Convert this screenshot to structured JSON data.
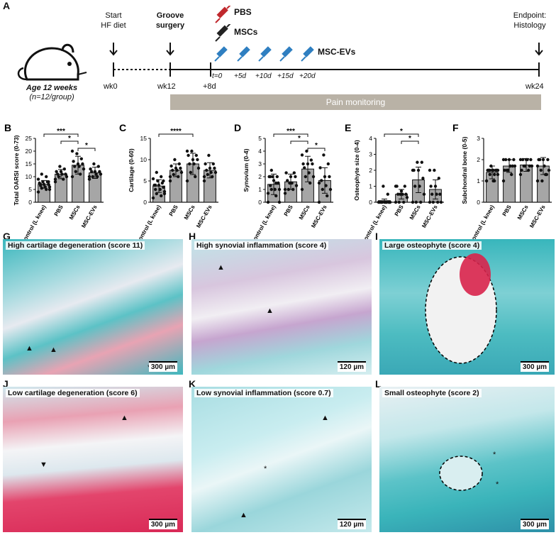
{
  "panel_a": {
    "letter": "A",
    "age_label": "Age 12 weeks",
    "group_label": "(n=12/group)",
    "start_label_1": "Start",
    "start_label_2": "HF diet",
    "surgery_label_1": "Groove",
    "surgery_label_2": "surgery",
    "endpoint_label_1": "Endpoint:",
    "endpoint_label_2": "Histology",
    "week_labels": [
      "wk0",
      "wk12",
      "+8d",
      "wk24"
    ],
    "injections": [
      "PBS",
      "MSCs",
      "MSC-EVs"
    ],
    "ev_doses": [
      "t=0",
      "+5d",
      "+10d",
      "+15d",
      "+20d"
    ],
    "pain_label": "Pain monitoring",
    "colors": {
      "pbs": "#c0282d",
      "mscs": "#222222",
      "evs": "#2f7fc1",
      "pain_bar": "#b9b2a6"
    }
  },
  "charts": [
    {
      "letter": "B",
      "ylabel": "Total OARSI score (0-73)",
      "ylim": [
        0,
        25
      ],
      "yticks": [
        0,
        5,
        10,
        15,
        20,
        25
      ],
      "categories": [
        "Control (L knee)",
        "PBS",
        "MSCs",
        "MSC-EVs"
      ],
      "means": [
        7,
        11,
        14.5,
        11.5
      ],
      "sds": [
        1.5,
        1.8,
        3.5,
        2.2
      ],
      "points": [
        [
          4,
          5,
          5.5,
          6,
          6,
          6.5,
          7,
          7,
          7.5,
          8,
          8,
          9,
          10,
          11,
          5,
          6,
          7,
          8
        ],
        [
          8,
          9,
          10,
          10,
          11,
          11,
          11,
          12,
          12,
          13,
          14,
          9
        ],
        [
          10,
          11,
          12,
          13,
          14,
          14,
          15,
          15,
          16,
          17,
          19,
          20
        ],
        [
          9,
          10,
          10,
          11,
          11,
          12,
          12,
          12,
          13,
          14,
          15,
          10
        ]
      ],
      "brackets": [
        {
          "from": 0,
          "to": 2,
          "label": "***"
        },
        {
          "from": 1,
          "to": 2,
          "label": "*"
        },
        {
          "from": 2,
          "to": 3,
          "label": "*"
        }
      ],
      "type": "bar"
    },
    {
      "letter": "C",
      "ylabel": "Cartilage (0-60)",
      "ylim": [
        0,
        15
      ],
      "yticks": [
        0,
        5,
        10,
        15
      ],
      "categories": [
        "Control (L knee)",
        "PBS",
        "MSCs",
        "MSC-EVs"
      ],
      "means": [
        3.8,
        7.5,
        9,
        7.5
      ],
      "sds": [
        1.5,
        1.5,
        2.5,
        1.8
      ],
      "points": [
        [
          1,
          1.5,
          2,
          2.5,
          3,
          3,
          3.5,
          4,
          4,
          4.5,
          5,
          5.5,
          6,
          7,
          2,
          3,
          4,
          5
        ],
        [
          5,
          6,
          6.5,
          7,
          7.5,
          7.5,
          8,
          8,
          8.5,
          9,
          10,
          6
        ],
        [
          5,
          6,
          7,
          8,
          9,
          9,
          10,
          10,
          11,
          11,
          12,
          12
        ],
        [
          5,
          6,
          6.5,
          7,
          7,
          7.5,
          8,
          8,
          9,
          9,
          11,
          6
        ]
      ],
      "brackets": [
        {
          "from": 0,
          "to": 2,
          "label": "****"
        }
      ],
      "type": "bar"
    },
    {
      "letter": "D",
      "ylabel": "Synovium (0-4)",
      "ylim": [
        0,
        5
      ],
      "yticks": [
        0,
        1,
        2,
        3,
        4,
        5
      ],
      "categories": [
        "Control (L knee)",
        "PBS",
        "MSCs",
        "MSC-EVs"
      ],
      "means": [
        1.4,
        1.6,
        2.6,
        1.7
      ],
      "sds": [
        0.8,
        0.6,
        1,
        1
      ],
      "points": [
        [
          0,
          0.5,
          1,
          1,
          1,
          1.3,
          1.5,
          1.7,
          2,
          2,
          2,
          0.7,
          1.5,
          2.5,
          0,
          1,
          2,
          1.5
        ],
        [
          0.7,
          1,
          1,
          1.3,
          1.5,
          1.7,
          2,
          2,
          2.3,
          2.3,
          1.5,
          1
        ],
        [
          1,
          1.5,
          2,
          2,
          2.3,
          2.7,
          3,
          3,
          3,
          3.3,
          4,
          3.7
        ],
        [
          0,
          0.5,
          1,
          1,
          1.3,
          1.7,
          2,
          2,
          2.7,
          3,
          3.7,
          1.5
        ]
      ],
      "brackets": [
        {
          "from": 0,
          "to": 2,
          "label": "***"
        },
        {
          "from": 1,
          "to": 2,
          "label": "*"
        },
        {
          "from": 2,
          "to": 3,
          "label": "*"
        }
      ],
      "type": "bar"
    },
    {
      "letter": "E",
      "ylabel": "Osteophyte size (0-4)",
      "ylim": [
        0,
        4
      ],
      "yticks": [
        0,
        1,
        2,
        3,
        4
      ],
      "categories": [
        "Control (L knee)",
        "PBS",
        "MSCs",
        "MSC-EVs"
      ],
      "means": [
        0.1,
        0.5,
        1.4,
        0.8
      ],
      "sds": [
        0.1,
        0.3,
        0.8,
        0.6
      ],
      "points": [
        [
          0,
          0,
          0,
          0,
          0,
          0,
          0,
          0,
          0,
          0.5,
          1,
          0,
          0,
          0,
          0,
          0,
          0,
          0
        ],
        [
          0,
          0,
          0,
          0.3,
          0.5,
          0.5,
          0.5,
          0.7,
          1,
          1,
          0.5,
          1
        ],
        [
          0,
          0,
          0,
          0.5,
          1,
          1,
          1.5,
          2,
          2,
          2.5,
          2.5,
          2
        ],
        [
          0,
          0,
          0,
          0,
          0.5,
          0.5,
          0.5,
          1,
          1,
          1.5,
          2,
          2
        ]
      ],
      "brackets": [
        {
          "from": 0,
          "to": 2,
          "label": "*"
        },
        {
          "from": 1,
          "to": 2,
          "label": "*"
        }
      ],
      "type": "bar"
    },
    {
      "letter": "F",
      "ylabel": "Subchondral bone (0-5)",
      "ylim": [
        0,
        3
      ],
      "yticks": [
        0,
        1,
        2,
        3
      ],
      "categories": [
        "Control (L knee)",
        "PBS",
        "MSCs",
        "MSC-EVs"
      ],
      "means": [
        1.4,
        1.7,
        1.75,
        1.7
      ],
      "sds": [
        0.3,
        0.3,
        0.3,
        0.4
      ],
      "points": [
        [
          1,
          1,
          1.3,
          1.3,
          1.5,
          1.5,
          1.5,
          1.5,
          1.5,
          1.5,
          1.7,
          1,
          1.3,
          1.5,
          1.5,
          1,
          1.5,
          1.5
        ],
        [
          1,
          1.3,
          1.5,
          1.7,
          1.7,
          2,
          2,
          2,
          1.5,
          1.7,
          1.5,
          2
        ],
        [
          1.3,
          1.5,
          1.7,
          1.7,
          2,
          2,
          2,
          2,
          1.5,
          1.7,
          1.7,
          2
        ],
        [
          1,
          1.3,
          1.5,
          1.5,
          1.7,
          2,
          2,
          2,
          2,
          1.3,
          1,
          1.7
        ]
      ],
      "brackets": [],
      "type": "bar"
    }
  ],
  "micrographs": [
    {
      "letter": "G",
      "title": "High cartilage degeneration (score 11)",
      "scale": "300 µm"
    },
    {
      "letter": "H",
      "title": "High synovial inflammation (score 4)",
      "scale": "120 µm"
    },
    {
      "letter": "I",
      "title": "Large osteophyte (score 4)",
      "scale": "300 µm"
    },
    {
      "letter": "J",
      "title": "Low cartilage degeneration (score 6)",
      "scale": "300 µm"
    },
    {
      "letter": "K",
      "title": "Low synovial inflammation (score 0.7)",
      "scale": "120 µm"
    },
    {
      "letter": "L",
      "title": "Small osteophyte (score 2)",
      "scale": "300 µm"
    }
  ],
  "marks": {
    "asterisk": "*"
  }
}
